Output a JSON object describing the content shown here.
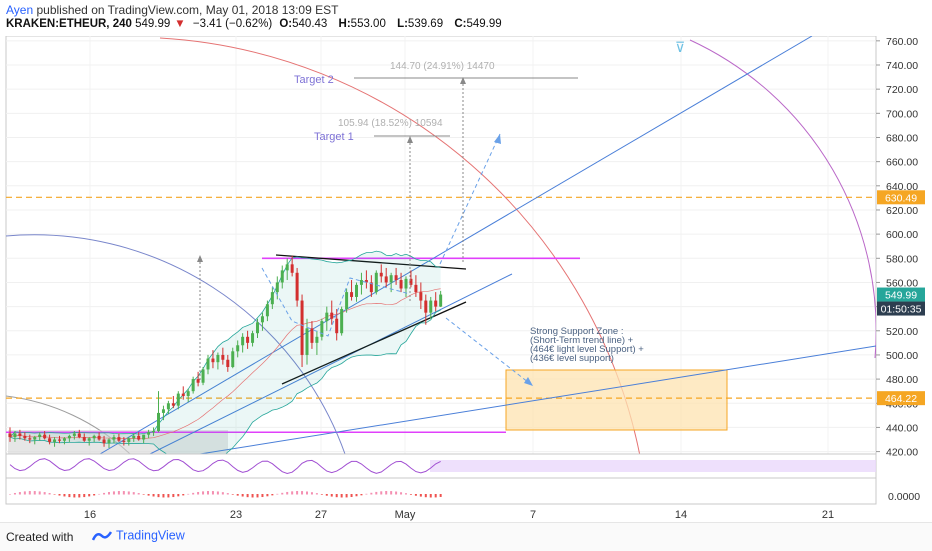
{
  "header": {
    "author": "Ayen",
    "published_text": "published on TradingView.com, May 01, 2018 13:09 EST",
    "symbol": "KRAKEN:ETHEUR, 240",
    "last_price": "549.99",
    "change_arrow": "▼",
    "change": "−3.41 (−0.62%)",
    "open_label": "O:",
    "open": "540.43",
    "high_label": "H:",
    "high": "553.00",
    "low_label": "L:",
    "low": "539.69",
    "close_label": "C:",
    "close": "549.99"
  },
  "footer": {
    "created_with": "Created with",
    "brand": "TradingView",
    "brand_icon": "tradingview-logo-icon"
  },
  "colors": {
    "candle_up": "#4caf50",
    "candle_down": "#d32f2f",
    "bollinger": "#26a69a",
    "trendline_blue": "#4a7fd8",
    "magenta": "#e040fb",
    "orange": "#f5a623",
    "price_tag_dark": "#2d3e50",
    "price_tag_green": "#26a69a",
    "price_tag_orange": "#f5a623"
  },
  "chart_data": {
    "type": "candlestick",
    "price_axis": {
      "ticks": [
        "760.00",
        "740.00",
        "720.00",
        "700.00",
        "680.00",
        "660.00",
        "640.00",
        "620.00",
        "600.00",
        "580.00",
        "560.00",
        "540.00",
        "520.00",
        "500.00",
        "480.00",
        "460.00",
        "440.00",
        "420.00"
      ],
      "range": [
        418,
        764
      ]
    },
    "oscillator_axis": {
      "ticks": [
        "0.0000"
      ]
    },
    "time_axis": {
      "ticks": [
        "16",
        "23",
        "27",
        "May",
        "7",
        "14",
        "21"
      ]
    },
    "price_tags": [
      {
        "label": "630.49",
        "value": 630.49,
        "style": "orange"
      },
      {
        "label": "549.99",
        "value": 549.99,
        "style": "green"
      },
      {
        "label": "01:50:35",
        "value": 540.0,
        "style": "dark"
      },
      {
        "label": "464.22",
        "value": 464.22,
        "style": "orange"
      }
    ],
    "candles": [
      [
        435,
        440,
        428,
        432
      ],
      [
        432,
        437,
        428,
        435
      ],
      [
        435,
        438,
        430,
        433
      ],
      [
        433,
        436,
        429,
        431
      ],
      [
        431,
        434,
        427,
        430
      ],
      [
        430,
        433,
        426,
        432
      ],
      [
        432,
        436,
        429,
        434
      ],
      [
        434,
        437,
        430,
        431
      ],
      [
        431,
        434,
        426,
        428
      ],
      [
        428,
        432,
        424,
        430
      ],
      [
        430,
        433,
        427,
        429
      ],
      [
        429,
        432,
        426,
        431
      ],
      [
        431,
        434,
        428,
        433
      ],
      [
        433,
        437,
        430,
        435
      ],
      [
        435,
        438,
        431,
        432
      ],
      [
        432,
        435,
        428,
        429
      ],
      [
        429,
        432,
        425,
        431
      ],
      [
        431,
        434,
        428,
        433
      ],
      [
        433,
        436,
        429,
        430
      ],
      [
        430,
        433,
        424,
        427
      ],
      [
        427,
        431,
        423,
        430
      ],
      [
        430,
        434,
        427,
        432
      ],
      [
        432,
        435,
        428,
        429
      ],
      [
        429,
        432,
        425,
        428
      ],
      [
        428,
        432,
        425,
        431
      ],
      [
        431,
        435,
        428,
        433
      ],
      [
        433,
        436,
        429,
        430
      ],
      [
        430,
        434,
        427,
        434
      ],
      [
        434,
        438,
        431,
        436
      ],
      [
        436,
        440,
        433,
        437
      ],
      [
        437,
        470,
        436,
        452
      ],
      [
        452,
        458,
        446,
        455
      ],
      [
        455,
        462,
        451,
        460
      ],
      [
        460,
        466,
        456,
        458
      ],
      [
        458,
        470,
        455,
        468
      ],
      [
        468,
        474,
        463,
        466
      ],
      [
        466,
        472,
        461,
        470
      ],
      [
        470,
        482,
        468,
        480
      ],
      [
        480,
        486,
        474,
        477
      ],
      [
        477,
        490,
        475,
        488
      ],
      [
        488,
        500,
        484,
        497
      ],
      [
        497,
        504,
        489,
        494
      ],
      [
        494,
        502,
        488,
        500
      ],
      [
        500,
        506,
        492,
        496
      ],
      [
        496,
        500,
        486,
        490
      ],
      [
        490,
        506,
        489,
        503
      ],
      [
        503,
        512,
        498,
        508
      ],
      [
        508,
        518,
        502,
        515
      ],
      [
        515,
        520,
        505,
        510
      ],
      [
        510,
        520,
        507,
        518
      ],
      [
        518,
        530,
        514,
        527
      ],
      [
        527,
        535,
        520,
        532
      ],
      [
        532,
        545,
        528,
        542
      ],
      [
        542,
        556,
        538,
        552
      ],
      [
        552,
        565,
        546,
        560
      ],
      [
        560,
        574,
        555,
        570
      ],
      [
        570,
        580,
        562,
        575
      ],
      [
        575,
        582,
        565,
        568
      ],
      [
        568,
        572,
        540,
        545
      ],
      [
        545,
        550,
        490,
        500
      ],
      [
        500,
        530,
        492,
        522
      ],
      [
        522,
        528,
        505,
        510
      ],
      [
        510,
        520,
        500,
        515
      ],
      [
        515,
        530,
        512,
        528
      ],
      [
        528,
        540,
        520,
        535
      ],
      [
        535,
        545,
        525,
        530
      ],
      [
        530,
        538,
        512,
        518
      ],
      [
        518,
        540,
        516,
        538
      ],
      [
        538,
        555,
        535,
        552
      ],
      [
        552,
        562,
        545,
        548
      ],
      [
        548,
        560,
        544,
        558
      ],
      [
        558,
        568,
        550,
        562
      ],
      [
        562,
        570,
        555,
        560
      ],
      [
        560,
        566,
        548,
        552
      ],
      [
        552,
        570,
        550,
        568
      ],
      [
        568,
        575,
        560,
        565
      ],
      [
        565,
        572,
        556,
        560
      ],
      [
        560,
        568,
        552,
        566
      ],
      [
        566,
        572,
        558,
        562
      ],
      [
        562,
        568,
        552,
        555
      ],
      [
        555,
        565,
        548,
        563
      ],
      [
        563,
        570,
        556,
        558
      ],
      [
        558,
        566,
        548,
        552
      ],
      [
        552,
        560,
        538,
        545
      ],
      [
        545,
        550,
        525,
        535
      ],
      [
        535,
        548,
        530,
        545
      ],
      [
        545,
        552,
        536,
        540
      ],
      [
        540,
        553,
        539.69,
        549.99
      ]
    ],
    "annotations": [
      {
        "type": "label",
        "text": "Target 2"
      },
      {
        "type": "label",
        "text": "Target 1"
      },
      {
        "type": "measure",
        "text": "144.70 (24.91%) 14470"
      },
      {
        "type": "measure",
        "text": "105.94 (18.52%) 10594"
      },
      {
        "type": "text",
        "lines": [
          "Strong Support Zone :",
          "(Short-Term trend line) +",
          "(464€ light level Support) +",
          "(436€ level support)"
        ]
      }
    ]
  }
}
